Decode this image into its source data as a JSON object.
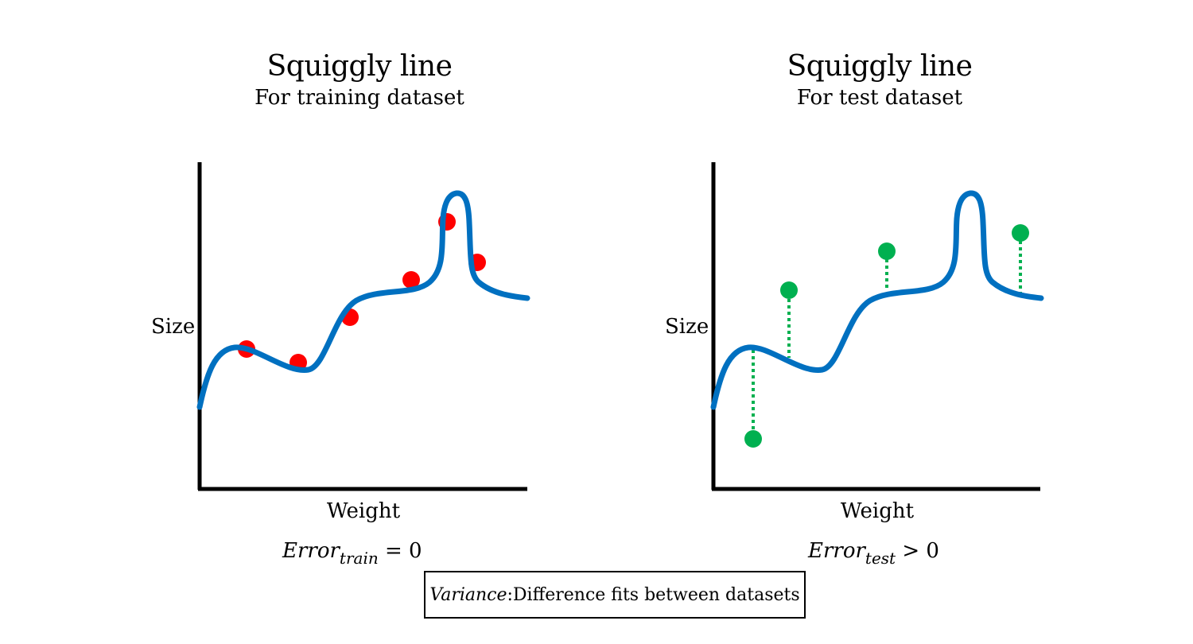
{
  "panels": {
    "left": {
      "title": "Squiggly line",
      "subtitle": "For training dataset",
      "xlabel": "Weight",
      "ylabel": "Size",
      "error_base": "Error",
      "error_sub": "train",
      "error_rel": " = 0",
      "point_color": "#ff0000"
    },
    "right": {
      "title": "Squiggly line",
      "subtitle": "For test dataset",
      "xlabel": "Weight",
      "ylabel": "Size",
      "error_base": "Error",
      "error_sub": "test",
      "error_rel": " > 0",
      "point_color": "#00b050"
    }
  },
  "variance_box": {
    "term": "Variance",
    "colon": ": ",
    "definition": "Difference fits between datasets"
  },
  "colors": {
    "curve": "#0070c0",
    "train_points": "#ff0000",
    "test_points": "#00b050",
    "residual_lines": "#00b050",
    "axes": "#000000"
  }
}
